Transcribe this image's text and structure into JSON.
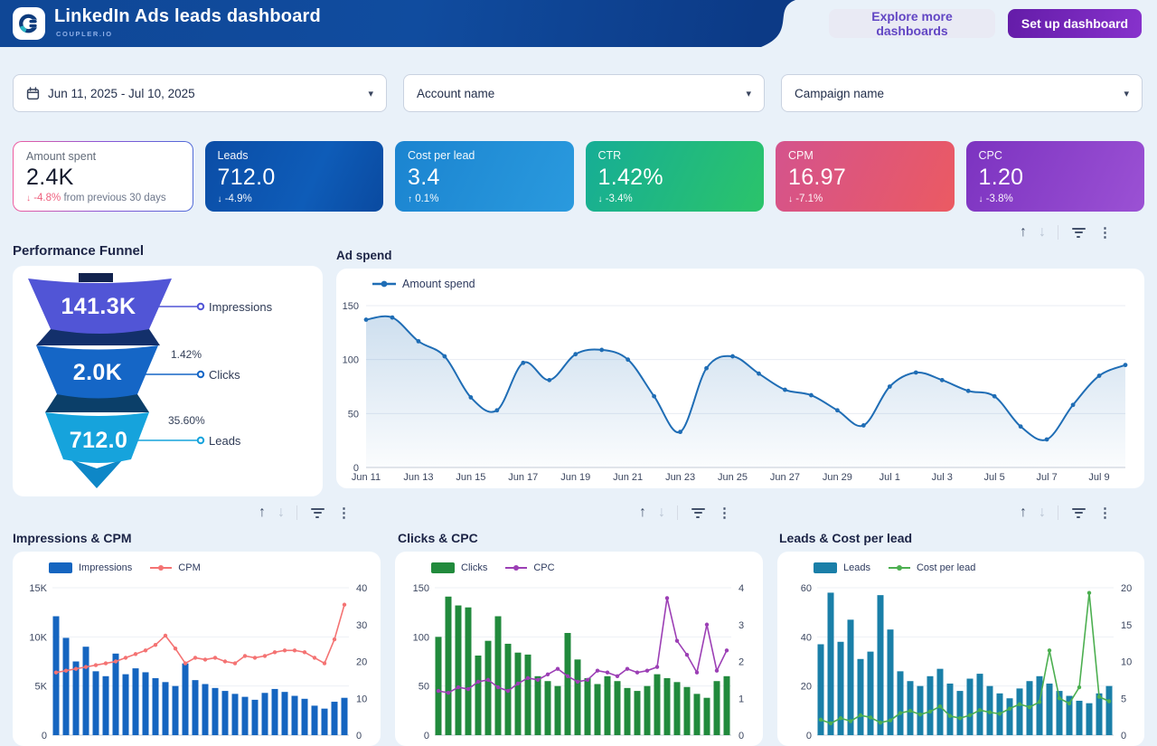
{
  "header": {
    "title": "LinkedIn Ads leads dashboard",
    "brand": "COUPLER.IO",
    "explore_label": "Explore more dashboards",
    "setup_label": "Set up dashboard"
  },
  "filters": {
    "date_range": "Jun 11, 2025 - Jul 10, 2025",
    "account_name": "Account name",
    "campaign_name": "Campaign name"
  },
  "kpis": [
    {
      "label": "Amount spent",
      "value": "2.4K",
      "arrow": "↓",
      "delta": "-4.8%",
      "note": "from previous 30 days"
    },
    {
      "label": "Leads",
      "value": "712.0",
      "arrow": "↓",
      "delta": "-4.9%"
    },
    {
      "label": "Cost per lead",
      "value": "3.4",
      "arrow": "↑",
      "delta": "0.1%"
    },
    {
      "label": "CTR",
      "value": "1.42%",
      "arrow": "↓",
      "delta": "-3.4%"
    },
    {
      "label": "CPM",
      "value": "16.97",
      "arrow": "↓",
      "delta": "-7.1%"
    },
    {
      "label": "CPC",
      "value": "1.20",
      "arrow": "↓",
      "delta": "-3.8%"
    }
  ],
  "funnel": {
    "title": "Performance Funnel",
    "stages": [
      {
        "value": "141.3K",
        "label": "Impressions",
        "rate": ""
      },
      {
        "value": "2.0K",
        "label": "Clicks",
        "rate": "1.42%"
      },
      {
        "value": "712.0",
        "label": "Leads",
        "rate": "35.60%"
      }
    ]
  },
  "titles": {
    "ad_spend": "Ad spend",
    "impressions_cpm": "Impressions & CPM",
    "clicks_cpc": "Clicks & CPC",
    "leads_cpl": "Leads & Cost per lead"
  },
  "colors": {
    "accent_blue": "#1f6db5",
    "bar_blue": "#1565c0",
    "cpm_red": "#f47373",
    "bar_green": "#218a3c",
    "cpc_purple": "#9c3fb5",
    "bar_teal": "#1a7fa8",
    "cpl_green": "#4caf50",
    "funnel_1": "#5155d6",
    "funnel_2": "#1566c6",
    "funnel_3": "#16a3dc"
  },
  "chart_data": [
    {
      "id": "ad_spend",
      "type": "area",
      "title": "Ad spend",
      "series": [
        {
          "name": "Amount spend",
          "values": [
            137,
            139,
            117,
            103,
            65,
            53,
            97,
            81,
            105,
            109,
            100,
            66,
            33,
            92,
            103,
            87,
            72,
            67,
            53,
            39,
            75,
            88,
            81,
            71,
            66,
            38,
            26,
            58,
            85,
            95
          ]
        }
      ],
      "x_tick_labels": [
        "Jun 11",
        "Jun 13",
        "Jun 15",
        "Jun 17",
        "Jun 19",
        "Jun 21",
        "Jun 23",
        "Jun 25",
        "Jun 27",
        "Jun 29",
        "Jul 1",
        "Jul 3",
        "Jul 5",
        "Jul 7",
        "Jul 9"
      ],
      "y_ticks": [
        {
          "v": 0,
          "label": "0"
        },
        {
          "v": 50,
          "label": "50"
        },
        {
          "v": 100,
          "label": "100"
        },
        {
          "v": 150,
          "label": "150"
        }
      ],
      "ylim": [
        0,
        150
      ],
      "legend_position": "top-left",
      "grid": true
    },
    {
      "id": "impressions_cpm",
      "type": "combo",
      "title": "Impressions & CPM",
      "series": [
        {
          "name": "Impressions",
          "kind": "bar",
          "axis": "left",
          "values": [
            12100,
            9900,
            7500,
            9000,
            6500,
            6000,
            8300,
            6200,
            6800,
            6400,
            5800,
            5400,
            5000,
            7300,
            5600,
            5200,
            4800,
            4500,
            4200,
            3900,
            3600,
            4300,
            4700,
            4400,
            4000,
            3700,
            3000,
            2700,
            3400,
            3800
          ]
        },
        {
          "name": "CPM",
          "kind": "line",
          "axis": "right",
          "values": [
            17,
            17.5,
            18,
            18.5,
            19,
            19.5,
            20,
            21,
            22,
            23,
            24.5,
            27,
            23.5,
            19.5,
            21,
            20.5,
            21,
            20,
            19.5,
            21.5,
            21,
            21.5,
            22.5,
            23,
            23,
            22.5,
            21,
            19.5,
            26,
            35.4
          ]
        }
      ],
      "left_ticks": [
        {
          "v": 0,
          "label": "0"
        },
        {
          "v": 5000,
          "label": "5K"
        },
        {
          "v": 10000,
          "label": "10K"
        },
        {
          "v": 15000,
          "label": "15K"
        }
      ],
      "right_ticks": [
        {
          "v": 0,
          "label": "0"
        },
        {
          "v": 10,
          "label": "10"
        },
        {
          "v": 20,
          "label": "20"
        },
        {
          "v": 30,
          "label": "30"
        },
        {
          "v": 40,
          "label": "40"
        }
      ],
      "grid": true
    },
    {
      "id": "clicks_cpc",
      "type": "combo",
      "title": "Clicks & CPC",
      "series": [
        {
          "name": "Clicks",
          "kind": "bar",
          "axis": "left",
          "values": [
            100,
            141,
            132,
            130,
            81,
            96,
            121,
            93,
            84,
            82,
            60,
            55,
            50,
            104,
            77,
            58,
            52,
            60,
            55,
            48,
            45,
            50,
            62,
            58,
            54,
            49,
            42,
            38,
            55,
            60
          ]
        },
        {
          "name": "CPC",
          "kind": "line",
          "axis": "right",
          "values": [
            1.2,
            1.15,
            1.3,
            1.25,
            1.45,
            1.5,
            1.3,
            1.2,
            1.4,
            1.55,
            1.5,
            1.65,
            1.8,
            1.6,
            1.45,
            1.5,
            1.75,
            1.7,
            1.6,
            1.8,
            1.7,
            1.75,
            1.85,
            3.72,
            2.56,
            2.18,
            1.7,
            3.0,
            1.75,
            2.3
          ]
        }
      ],
      "left_ticks": [
        {
          "v": 0,
          "label": "0"
        },
        {
          "v": 50,
          "label": "50"
        },
        {
          "v": 100,
          "label": "100"
        },
        {
          "v": 150,
          "label": "150"
        }
      ],
      "right_ticks": [
        {
          "v": 0,
          "label": "0"
        },
        {
          "v": 1,
          "label": "1"
        },
        {
          "v": 2,
          "label": "2"
        },
        {
          "v": 3,
          "label": "3"
        },
        {
          "v": 4,
          "label": "4"
        }
      ],
      "grid": true
    },
    {
      "id": "leads_cpl",
      "type": "combo",
      "title": "Leads & Cost per lead",
      "series": [
        {
          "name": "Leads",
          "kind": "bar",
          "axis": "left",
          "values": [
            37,
            58,
            38,
            47,
            31,
            34,
            57,
            43,
            26,
            22,
            20,
            24,
            27,
            21,
            18,
            23,
            25,
            20,
            17,
            15,
            19,
            22,
            24,
            21,
            18,
            16,
            14,
            13,
            17,
            20
          ]
        },
        {
          "name": "Cost per lead",
          "kind": "line",
          "axis": "right",
          "values": [
            2.1,
            1.6,
            2.3,
            1.9,
            2.7,
            2.4,
            1.7,
            2.0,
            3.0,
            3.3,
            2.8,
            3.2,
            3.9,
            2.6,
            2.3,
            2.7,
            3.4,
            3.1,
            2.9,
            3.6,
            4.2,
            3.8,
            4.5,
            11.5,
            5.0,
            4.3,
            6.5,
            19.3,
            5.2,
            4.6
          ]
        }
      ],
      "left_ticks": [
        {
          "v": 0,
          "label": "0"
        },
        {
          "v": 20,
          "label": "20"
        },
        {
          "v": 40,
          "label": "40"
        },
        {
          "v": 60,
          "label": "60"
        }
      ],
      "right_ticks": [
        {
          "v": 0,
          "label": "0"
        },
        {
          "v": 5,
          "label": "5"
        },
        {
          "v": 10,
          "label": "10"
        },
        {
          "v": 15,
          "label": "15"
        },
        {
          "v": 20,
          "label": "20"
        }
      ],
      "grid": true
    }
  ]
}
